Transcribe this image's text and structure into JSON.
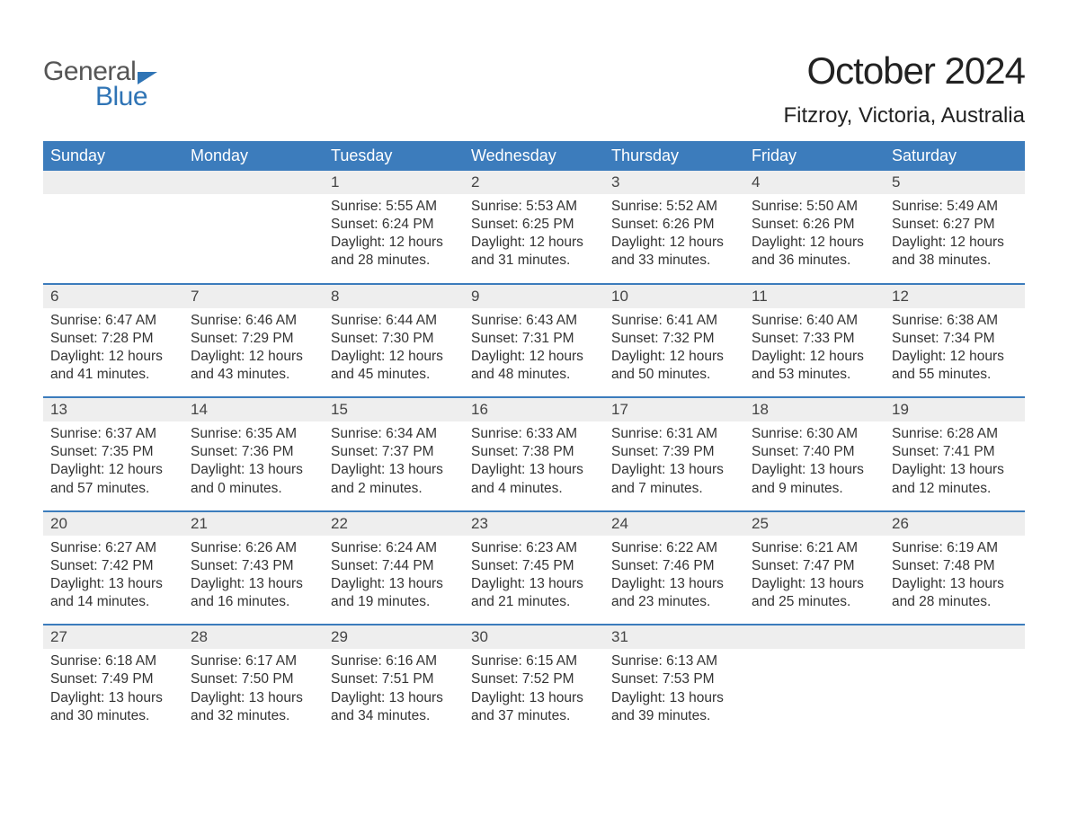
{
  "brand": {
    "word1": "General",
    "word2": "Blue",
    "accent_color": "#2f74b5"
  },
  "title": "October 2024",
  "location": "Fitzroy, Victoria, Australia",
  "weekday_header_bg": "#3c7cbc",
  "weekday_header_fg": "#ffffff",
  "daynum_bg": "#eeeeee",
  "text_color": "#333333",
  "background_color": "#ffffff",
  "weekdays": [
    "Sunday",
    "Monday",
    "Tuesday",
    "Wednesday",
    "Thursday",
    "Friday",
    "Saturday"
  ],
  "weeks": [
    [
      {
        "num": "",
        "sunrise": "",
        "sunset": "",
        "daylight": ""
      },
      {
        "num": "",
        "sunrise": "",
        "sunset": "",
        "daylight": ""
      },
      {
        "num": "1",
        "sunrise": "Sunrise: 5:55 AM",
        "sunset": "Sunset: 6:24 PM",
        "daylight": "Daylight: 12 hours and 28 minutes."
      },
      {
        "num": "2",
        "sunrise": "Sunrise: 5:53 AM",
        "sunset": "Sunset: 6:25 PM",
        "daylight": "Daylight: 12 hours and 31 minutes."
      },
      {
        "num": "3",
        "sunrise": "Sunrise: 5:52 AM",
        "sunset": "Sunset: 6:26 PM",
        "daylight": "Daylight: 12 hours and 33 minutes."
      },
      {
        "num": "4",
        "sunrise": "Sunrise: 5:50 AM",
        "sunset": "Sunset: 6:26 PM",
        "daylight": "Daylight: 12 hours and 36 minutes."
      },
      {
        "num": "5",
        "sunrise": "Sunrise: 5:49 AM",
        "sunset": "Sunset: 6:27 PM",
        "daylight": "Daylight: 12 hours and 38 minutes."
      }
    ],
    [
      {
        "num": "6",
        "sunrise": "Sunrise: 6:47 AM",
        "sunset": "Sunset: 7:28 PM",
        "daylight": "Daylight: 12 hours and 41 minutes."
      },
      {
        "num": "7",
        "sunrise": "Sunrise: 6:46 AM",
        "sunset": "Sunset: 7:29 PM",
        "daylight": "Daylight: 12 hours and 43 minutes."
      },
      {
        "num": "8",
        "sunrise": "Sunrise: 6:44 AM",
        "sunset": "Sunset: 7:30 PM",
        "daylight": "Daylight: 12 hours and 45 minutes."
      },
      {
        "num": "9",
        "sunrise": "Sunrise: 6:43 AM",
        "sunset": "Sunset: 7:31 PM",
        "daylight": "Daylight: 12 hours and 48 minutes."
      },
      {
        "num": "10",
        "sunrise": "Sunrise: 6:41 AM",
        "sunset": "Sunset: 7:32 PM",
        "daylight": "Daylight: 12 hours and 50 minutes."
      },
      {
        "num": "11",
        "sunrise": "Sunrise: 6:40 AM",
        "sunset": "Sunset: 7:33 PM",
        "daylight": "Daylight: 12 hours and 53 minutes."
      },
      {
        "num": "12",
        "sunrise": "Sunrise: 6:38 AM",
        "sunset": "Sunset: 7:34 PM",
        "daylight": "Daylight: 12 hours and 55 minutes."
      }
    ],
    [
      {
        "num": "13",
        "sunrise": "Sunrise: 6:37 AM",
        "sunset": "Sunset: 7:35 PM",
        "daylight": "Daylight: 12 hours and 57 minutes."
      },
      {
        "num": "14",
        "sunrise": "Sunrise: 6:35 AM",
        "sunset": "Sunset: 7:36 PM",
        "daylight": "Daylight: 13 hours and 0 minutes."
      },
      {
        "num": "15",
        "sunrise": "Sunrise: 6:34 AM",
        "sunset": "Sunset: 7:37 PM",
        "daylight": "Daylight: 13 hours and 2 minutes."
      },
      {
        "num": "16",
        "sunrise": "Sunrise: 6:33 AM",
        "sunset": "Sunset: 7:38 PM",
        "daylight": "Daylight: 13 hours and 4 minutes."
      },
      {
        "num": "17",
        "sunrise": "Sunrise: 6:31 AM",
        "sunset": "Sunset: 7:39 PM",
        "daylight": "Daylight: 13 hours and 7 minutes."
      },
      {
        "num": "18",
        "sunrise": "Sunrise: 6:30 AM",
        "sunset": "Sunset: 7:40 PM",
        "daylight": "Daylight: 13 hours and 9 minutes."
      },
      {
        "num": "19",
        "sunrise": "Sunrise: 6:28 AM",
        "sunset": "Sunset: 7:41 PM",
        "daylight": "Daylight: 13 hours and 12 minutes."
      }
    ],
    [
      {
        "num": "20",
        "sunrise": "Sunrise: 6:27 AM",
        "sunset": "Sunset: 7:42 PM",
        "daylight": "Daylight: 13 hours and 14 minutes."
      },
      {
        "num": "21",
        "sunrise": "Sunrise: 6:26 AM",
        "sunset": "Sunset: 7:43 PM",
        "daylight": "Daylight: 13 hours and 16 minutes."
      },
      {
        "num": "22",
        "sunrise": "Sunrise: 6:24 AM",
        "sunset": "Sunset: 7:44 PM",
        "daylight": "Daylight: 13 hours and 19 minutes."
      },
      {
        "num": "23",
        "sunrise": "Sunrise: 6:23 AM",
        "sunset": "Sunset: 7:45 PM",
        "daylight": "Daylight: 13 hours and 21 minutes."
      },
      {
        "num": "24",
        "sunrise": "Sunrise: 6:22 AM",
        "sunset": "Sunset: 7:46 PM",
        "daylight": "Daylight: 13 hours and 23 minutes."
      },
      {
        "num": "25",
        "sunrise": "Sunrise: 6:21 AM",
        "sunset": "Sunset: 7:47 PM",
        "daylight": "Daylight: 13 hours and 25 minutes."
      },
      {
        "num": "26",
        "sunrise": "Sunrise: 6:19 AM",
        "sunset": "Sunset: 7:48 PM",
        "daylight": "Daylight: 13 hours and 28 minutes."
      }
    ],
    [
      {
        "num": "27",
        "sunrise": "Sunrise: 6:18 AM",
        "sunset": "Sunset: 7:49 PM",
        "daylight": "Daylight: 13 hours and 30 minutes."
      },
      {
        "num": "28",
        "sunrise": "Sunrise: 6:17 AM",
        "sunset": "Sunset: 7:50 PM",
        "daylight": "Daylight: 13 hours and 32 minutes."
      },
      {
        "num": "29",
        "sunrise": "Sunrise: 6:16 AM",
        "sunset": "Sunset: 7:51 PM",
        "daylight": "Daylight: 13 hours and 34 minutes."
      },
      {
        "num": "30",
        "sunrise": "Sunrise: 6:15 AM",
        "sunset": "Sunset: 7:52 PM",
        "daylight": "Daylight: 13 hours and 37 minutes."
      },
      {
        "num": "31",
        "sunrise": "Sunrise: 6:13 AM",
        "sunset": "Sunset: 7:53 PM",
        "daylight": "Daylight: 13 hours and 39 minutes."
      },
      {
        "num": "",
        "sunrise": "",
        "sunset": "",
        "daylight": ""
      },
      {
        "num": "",
        "sunrise": "",
        "sunset": "",
        "daylight": ""
      }
    ]
  ]
}
